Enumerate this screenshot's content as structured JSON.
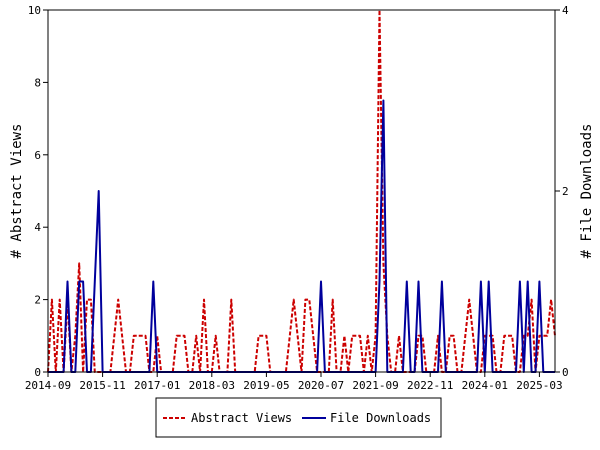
{
  "chart_data": {
    "type": "line",
    "title": "",
    "xlabel": "",
    "ylabel": "# Abstract Views",
    "y2label": "# File Downloads",
    "x_tick_labels": [
      "2014-09",
      "2015-11",
      "2017-01",
      "2018-03",
      "2019-05",
      "2020-07",
      "2021-09",
      "2022-11",
      "2024-01",
      "2025-03"
    ],
    "x_range": [
      "2014-09",
      "2025-07"
    ],
    "ylim": [
      0,
      10
    ],
    "y_ticks": [
      0,
      2,
      4,
      6,
      8,
      10
    ],
    "y2lim": [
      0,
      4
    ],
    "y2_ticks": [
      0,
      2,
      4
    ],
    "grid": false,
    "legend_position": "bottom-center",
    "series": [
      {
        "name": "Abstract Views",
        "color": "#cc0000",
        "style": "dashed",
        "axis": "left",
        "x": [
          "2014-09",
          "2014-10",
          "2014-11",
          "2014-12",
          "2015-01",
          "2015-02",
          "2015-03",
          "2015-04",
          "2015-05",
          "2015-06",
          "2015-07",
          "2015-08",
          "2015-09",
          "2015-10",
          "2015-11",
          "2015-12",
          "2016-01",
          "2016-02",
          "2016-03",
          "2016-04",
          "2016-05",
          "2016-06",
          "2016-07",
          "2016-08",
          "2016-09",
          "2016-10",
          "2016-11",
          "2016-12",
          "2017-01",
          "2017-02",
          "2017-03",
          "2017-04",
          "2017-05",
          "2017-06",
          "2017-07",
          "2017-08",
          "2017-09",
          "2017-10",
          "2017-11",
          "2017-12",
          "2018-01",
          "2018-02",
          "2018-03",
          "2018-04",
          "2018-05",
          "2018-06",
          "2018-07",
          "2018-08",
          "2018-09",
          "2018-10",
          "2018-11",
          "2018-12",
          "2019-01",
          "2019-02",
          "2019-03",
          "2019-04",
          "2019-05",
          "2019-06",
          "2019-07",
          "2019-08",
          "2019-09",
          "2019-10",
          "2019-11",
          "2019-12",
          "2020-01",
          "2020-02",
          "2020-03",
          "2020-04",
          "2020-05",
          "2020-06",
          "2020-07",
          "2020-08",
          "2020-09",
          "2020-10",
          "2020-11",
          "2020-12",
          "2021-01",
          "2021-02",
          "2021-03",
          "2021-04",
          "2021-05",
          "2021-06",
          "2021-07",
          "2021-08",
          "2021-09",
          "2021-10",
          "2021-11",
          "2021-12",
          "2022-01",
          "2022-02",
          "2022-03",
          "2022-04",
          "2022-05",
          "2022-06",
          "2022-07",
          "2022-08",
          "2022-09",
          "2022-10",
          "2022-11",
          "2022-12",
          "2023-01",
          "2023-02",
          "2023-03",
          "2023-04",
          "2023-05",
          "2023-06",
          "2023-07",
          "2023-08",
          "2023-09",
          "2023-10",
          "2023-11",
          "2023-12",
          "2024-01",
          "2024-02",
          "2024-03",
          "2024-04",
          "2024-05",
          "2024-06",
          "2024-07",
          "2024-08",
          "2024-09",
          "2024-10",
          "2024-11",
          "2024-12",
          "2025-01",
          "2025-02",
          "2025-03",
          "2025-04",
          "2025-05",
          "2025-06",
          "2025-07"
        ],
        "values": [
          0,
          2,
          0,
          2,
          0,
          2,
          0,
          1,
          3,
          0,
          2,
          2,
          0,
          0,
          0,
          0,
          0,
          1,
          2,
          1,
          0,
          0,
          1,
          1,
          1,
          1,
          0,
          0,
          1,
          0,
          0,
          0,
          0,
          1,
          1,
          1,
          0,
          0,
          1,
          0,
          2,
          0,
          0,
          1,
          0,
          0,
          0,
          2,
          0,
          0,
          0,
          0,
          0,
          0,
          1,
          1,
          1,
          0,
          0,
          0,
          0,
          0,
          1,
          2,
          1,
          0,
          2,
          2,
          1,
          0,
          0,
          0,
          0,
          2,
          0,
          0,
          1,
          0,
          1,
          1,
          1,
          0,
          1,
          0,
          1,
          10,
          3,
          1,
          0,
          0,
          1,
          0,
          0,
          0,
          0,
          1,
          1,
          0,
          0,
          0,
          1,
          0,
          0,
          1,
          1,
          0,
          0,
          1,
          2,
          1,
          0,
          0,
          1,
          1,
          1,
          0,
          0,
          1,
          1,
          1,
          0,
          0,
          1,
          1,
          2,
          0,
          1,
          1,
          1,
          2,
          1
        ]
      },
      {
        "name": "File Downloads",
        "color": "#00009c",
        "style": "solid",
        "axis": "right",
        "x": [
          "2014-09",
          "2014-10",
          "2014-11",
          "2014-12",
          "2015-01",
          "2015-02",
          "2015-03",
          "2015-04",
          "2015-05",
          "2015-06",
          "2015-07",
          "2015-08",
          "2015-09",
          "2015-10",
          "2015-11",
          "2015-12",
          "2016-01",
          "2016-02",
          "2016-03",
          "2016-04",
          "2016-05",
          "2016-06",
          "2016-07",
          "2016-08",
          "2016-09",
          "2016-10",
          "2016-11",
          "2016-12",
          "2017-01",
          "2017-02",
          "2017-03",
          "2017-04",
          "2017-05",
          "2017-06",
          "2017-07",
          "2017-08",
          "2017-09",
          "2017-10",
          "2017-11",
          "2017-12",
          "2018-01",
          "2018-02",
          "2018-03",
          "2018-04",
          "2018-05",
          "2018-06",
          "2018-07",
          "2018-08",
          "2018-09",
          "2018-10",
          "2018-11",
          "2018-12",
          "2019-01",
          "2019-02",
          "2019-03",
          "2019-04",
          "2019-05",
          "2019-06",
          "2019-07",
          "2019-08",
          "2019-09",
          "2019-10",
          "2019-11",
          "2019-12",
          "2020-01",
          "2020-02",
          "2020-03",
          "2020-04",
          "2020-05",
          "2020-06",
          "2020-07",
          "2020-08",
          "2020-09",
          "2020-10",
          "2020-11",
          "2020-12",
          "2021-01",
          "2021-02",
          "2021-03",
          "2021-04",
          "2021-05",
          "2021-06",
          "2021-07",
          "2021-08",
          "2021-09",
          "2021-10",
          "2021-11",
          "2021-12",
          "2022-01",
          "2022-02",
          "2022-03",
          "2022-04",
          "2022-05",
          "2022-06",
          "2022-07",
          "2022-08",
          "2022-09",
          "2022-10",
          "2022-11",
          "2022-12",
          "2023-01",
          "2023-02",
          "2023-03",
          "2023-04",
          "2023-05",
          "2023-06",
          "2023-07",
          "2023-08",
          "2023-09",
          "2023-10",
          "2023-11",
          "2023-12",
          "2024-01",
          "2024-02",
          "2024-03",
          "2024-04",
          "2024-05",
          "2024-06",
          "2024-07",
          "2024-08",
          "2024-09",
          "2024-10",
          "2024-11",
          "2024-12",
          "2025-01",
          "2025-02",
          "2025-03",
          "2025-04",
          "2025-05",
          "2025-06",
          "2025-07"
        ],
        "values": [
          0,
          0,
          0,
          0,
          0,
          1,
          0,
          0,
          1,
          1,
          0,
          0,
          1,
          2,
          0,
          0,
          0,
          0,
          0,
          0,
          0,
          0,
          0,
          0,
          0,
          0,
          0,
          1,
          0,
          0,
          0,
          0,
          0,
          0,
          0,
          0,
          0,
          0,
          0,
          0,
          0,
          0,
          0,
          0,
          0,
          0,
          0,
          0,
          0,
          0,
          0,
          0,
          0,
          0,
          0,
          0,
          0,
          0,
          0,
          0,
          0,
          0,
          0,
          0,
          0,
          0,
          0,
          0,
          0,
          0,
          1,
          0,
          0,
          0,
          0,
          0,
          0,
          0,
          0,
          0,
          0,
          0,
          0,
          0,
          0,
          1,
          3,
          0,
          0,
          0,
          0,
          0,
          1,
          0,
          0,
          1,
          0,
          0,
          0,
          0,
          0,
          1,
          0,
          0,
          0,
          0,
          0,
          0,
          0,
          0,
          0,
          1,
          0,
          1,
          0,
          0,
          0,
          0,
          0,
          0,
          0,
          1,
          0,
          1,
          0,
          0,
          1,
          0,
          0,
          0,
          0
        ]
      }
    ]
  },
  "legend": {
    "items": [
      {
        "label": "Abstract Views",
        "color": "#cc0000",
        "style": "dashed"
      },
      {
        "label": "File Downloads",
        "color": "#00009c",
        "style": "solid"
      }
    ]
  }
}
